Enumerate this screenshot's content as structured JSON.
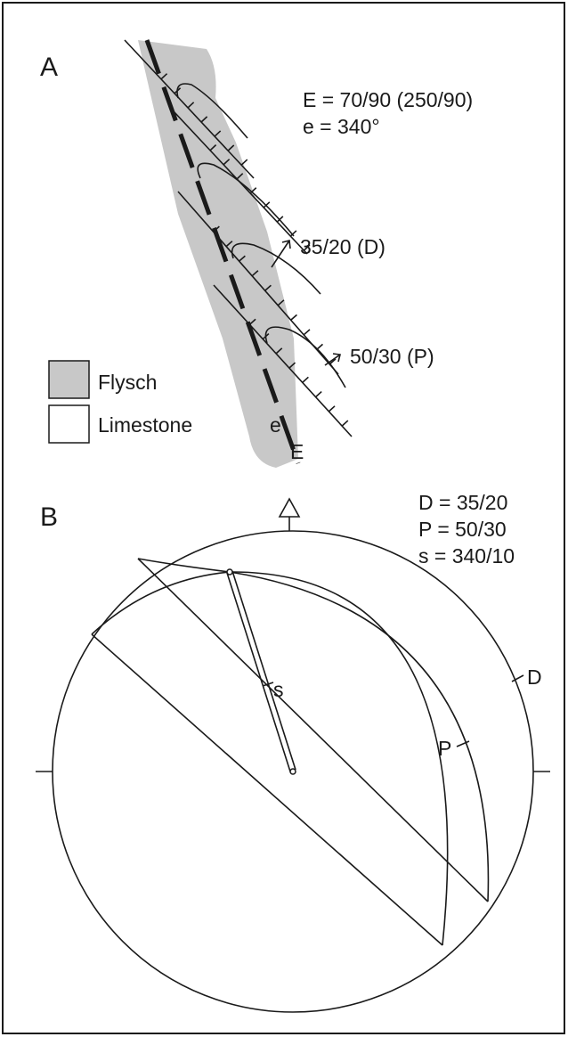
{
  "panel_a": {
    "label": "A",
    "annotations": [
      "E  = 70/90 (250/90)",
      "e = 340°"
    ],
    "arrow_labels": [
      "35/20 (D)",
      "50/30 (P)"
    ],
    "legend": [
      "Flysch",
      "Limestone"
    ],
    "fault_labels": [
      "e",
      "E"
    ]
  },
  "panel_b": {
    "label": "B",
    "annotations": [
      "D = 35/20",
      "P = 50/30",
      "s = 340/10"
    ],
    "plane_labels": [
      "s",
      "D",
      "P"
    ]
  }
}
